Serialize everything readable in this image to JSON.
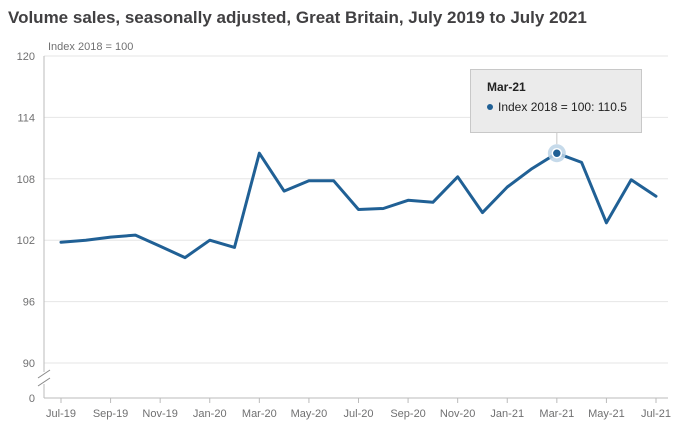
{
  "title": "Volume sales, seasonally adjusted, Great Britain, July 2019 to July 2021",
  "chart_data": {
    "type": "line",
    "title": "Volume sales, seasonally adjusted, Great Britain, July 2019 to July 2021",
    "ylabel": "Index 2018 = 100",
    "xlabel": "",
    "ylim": [
      90,
      120
    ],
    "yticks": [
      0,
      90,
      96,
      102,
      108,
      114,
      120
    ],
    "axis_break": "between 0 and 90",
    "grid": true,
    "x_tick_labels": [
      "Jul-19",
      "Sep-19",
      "Nov-19",
      "Jan-20",
      "Mar-20",
      "May-20",
      "Jul-20",
      "Sep-20",
      "Nov-20",
      "Jan-21",
      "Mar-21",
      "May-21",
      "Jul-21"
    ],
    "categories": [
      "Jul-19",
      "Aug-19",
      "Sep-19",
      "Oct-19",
      "Nov-19",
      "Dec-19",
      "Jan-20",
      "Feb-20",
      "Mar-20",
      "Apr-20",
      "May-20",
      "Jun-20",
      "Jul-20",
      "Aug-20",
      "Sep-20",
      "Oct-20",
      "Nov-20",
      "Dec-20",
      "Jan-21",
      "Feb-21",
      "Mar-21",
      "Apr-21",
      "May-21",
      "Jun-21",
      "Jul-21"
    ],
    "series": [
      {
        "name": "Index 2018 = 100",
        "color": "#206095",
        "values": [
          101.8,
          102.0,
          102.3,
          102.5,
          101.4,
          100.3,
          102.0,
          101.3,
          110.5,
          106.8,
          107.8,
          107.8,
          105.0,
          105.1,
          105.9,
          105.7,
          108.2,
          104.7,
          107.2,
          109.0,
          110.5,
          109.6,
          103.7,
          107.9,
          106.3
        ]
      }
    ],
    "highlight": {
      "index": 20,
      "label": "Mar-21",
      "series": "Index 2018 = 100",
      "value": 110.5
    }
  },
  "tooltip": {
    "title": "Mar-21",
    "series_label": "Index 2018 = 100: 110.5"
  }
}
